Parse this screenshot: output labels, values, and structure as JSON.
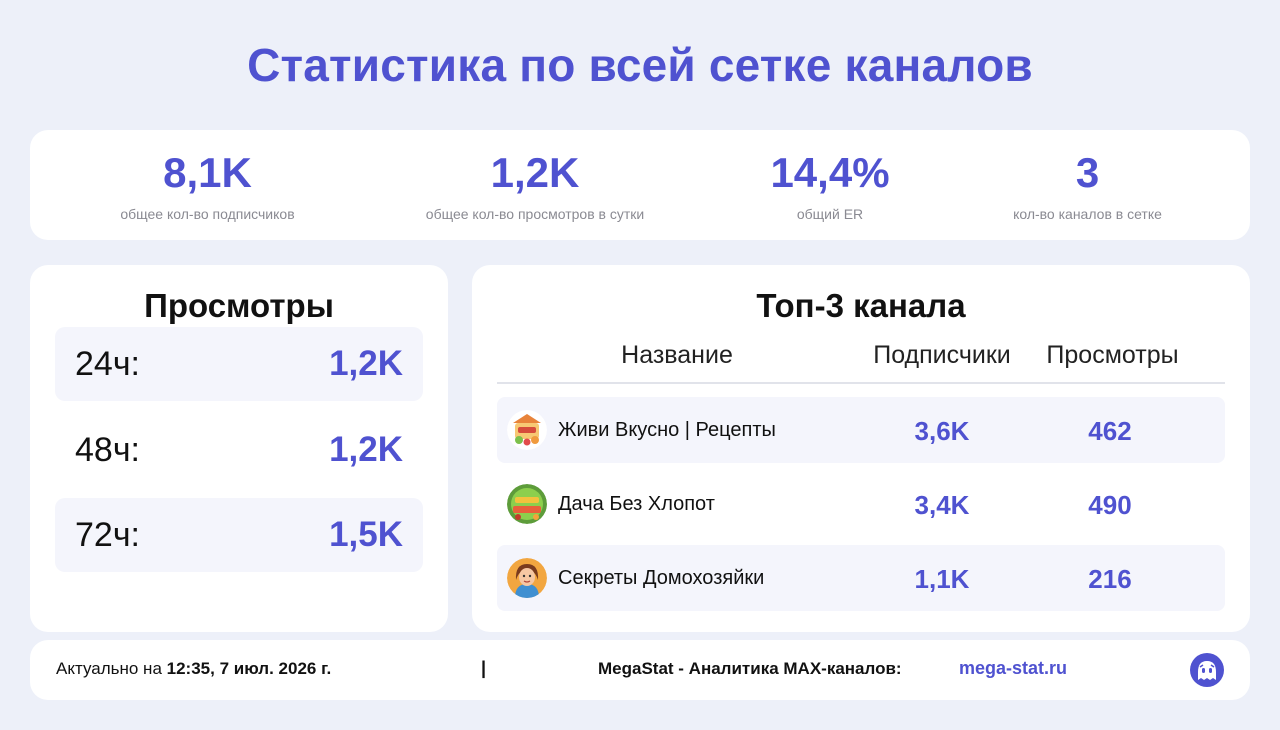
{
  "title": "Статистика по всей сетке каналов",
  "colors": {
    "accent": "#4f52d0",
    "background": "#edf0f9",
    "card": "#ffffff",
    "row_shade": "#f4f5fc"
  },
  "stats": [
    {
      "value": "8,1K",
      "label": "общее кол-во подписчиков"
    },
    {
      "value": "1,2K",
      "label": "общее кол-во просмотров в сутки"
    },
    {
      "value": "14,4%",
      "label": "общий ER"
    },
    {
      "value": "3",
      "label": "кол-во каналов в сетке"
    }
  ],
  "views": {
    "heading": "Просмотры",
    "rows": [
      {
        "label": "24ч:",
        "value": "1,2K"
      },
      {
        "label": "48ч:",
        "value": "1,2K"
      },
      {
        "label": "72ч:",
        "value": "1,5K"
      }
    ]
  },
  "top_channels": {
    "heading": "Топ-3 канала",
    "columns": {
      "name": "Название",
      "subscribers": "Подписчики",
      "views": "Просмотры"
    },
    "rows": [
      {
        "name": "Живи Вкусно | Рецепты",
        "subscribers": "3,6K",
        "views": "462",
        "avatar_icon": "food-logo-icon"
      },
      {
        "name": "Дача Без Хлопот",
        "subscribers": "3,4K",
        "views": "490",
        "avatar_icon": "garden-logo-icon"
      },
      {
        "name": "Секреты Домохозяйки",
        "subscribers": "1,1K",
        "views": "216",
        "avatar_icon": "housewife-avatar-icon"
      }
    ]
  },
  "footer": {
    "updated_prefix": "Актуально на",
    "updated_value": "12:35, 7 июл. 2026 г.",
    "separator": "|",
    "brand": "MegaStat - Аналитика MAX-каналов:",
    "link": "mega-stat.ru",
    "logo_icon": "megastat-logo-icon"
  },
  "chart_data": {
    "type": "table",
    "title": "Топ-3 канала",
    "columns": [
      "Название",
      "Подписчики",
      "Просмотры"
    ],
    "rows": [
      [
        "Живи Вкусно | Рецепты",
        "3,6K",
        "462"
      ],
      [
        "Дача Без Хлопот",
        "3,4K",
        "490"
      ],
      [
        "Секреты Домохозяйки",
        "1,1K",
        "216"
      ]
    ]
  }
}
